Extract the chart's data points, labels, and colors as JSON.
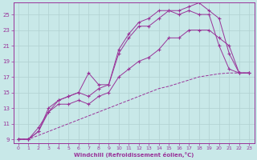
{
  "xlabel": "Windchill (Refroidissement éolien,°C)",
  "ylabel": "",
  "background_color": "#c8e8e8",
  "line_color": "#993399",
  "grid_color": "#b0d0d0",
  "xlim": [
    -0.5,
    23.5
  ],
  "ylim": [
    8.5,
    26.5
  ],
  "xticks": [
    0,
    1,
    2,
    3,
    4,
    5,
    6,
    7,
    8,
    9,
    10,
    11,
    12,
    13,
    14,
    15,
    16,
    17,
    18,
    19,
    20,
    21,
    22,
    23
  ],
  "yticks": [
    9,
    11,
    13,
    15,
    17,
    19,
    21,
    23,
    25
  ],
  "lines": [
    {
      "x": [
        0,
        1,
        2,
        3,
        4,
        5,
        6,
        7,
        8,
        9,
        10,
        11,
        12,
        13,
        14,
        15,
        16,
        17,
        18,
        19,
        20,
        21,
        22,
        23
      ],
      "y": [
        9,
        9,
        10.5,
        12.5,
        14,
        14.5,
        15,
        17.5,
        16,
        16,
        20.5,
        22.5,
        24,
        24.5,
        25.5,
        25.5,
        25.5,
        26,
        26.5,
        25.5,
        24.5,
        20,
        17.5,
        17.5
      ],
      "marker": "+",
      "linestyle": "-"
    },
    {
      "x": [
        0,
        1,
        2,
        3,
        4,
        5,
        6,
        7,
        8,
        9,
        10,
        11,
        12,
        13,
        14,
        15,
        16,
        17,
        18,
        19,
        20,
        21,
        22,
        23
      ],
      "y": [
        9,
        9,
        10,
        13,
        14,
        14.5,
        15,
        14.5,
        15.5,
        16,
        20,
        22,
        23.5,
        23.5,
        24.5,
        25.5,
        25,
        25.5,
        25,
        25,
        21,
        18,
        17.5,
        17.5
      ],
      "marker": "+",
      "linestyle": "-"
    },
    {
      "x": [
        0,
        1,
        2,
        3,
        4,
        5,
        6,
        7,
        8,
        9,
        10,
        11,
        12,
        13,
        14,
        15,
        16,
        17,
        18,
        19,
        20,
        21,
        22,
        23
      ],
      "y": [
        9,
        9,
        10,
        12.5,
        13.5,
        13.5,
        14,
        13.5,
        14.5,
        15,
        17,
        18,
        19,
        19.5,
        20.5,
        22,
        22,
        23,
        23,
        23,
        22,
        21,
        17.5,
        17.5
      ],
      "marker": "+",
      "linestyle": "-"
    },
    {
      "x": [
        0,
        1,
        2,
        3,
        4,
        5,
        6,
        7,
        8,
        9,
        10,
        11,
        12,
        13,
        14,
        15,
        16,
        17,
        18,
        19,
        20,
        21,
        22,
        23
      ],
      "y": [
        9,
        9,
        9.5,
        10,
        10.5,
        11,
        11.5,
        12,
        12.5,
        13,
        13.5,
        14,
        14.5,
        15,
        15.5,
        15.8,
        16.2,
        16.6,
        17,
        17.2,
        17.4,
        17.5,
        17.5,
        17.5
      ],
      "marker": null,
      "linestyle": "--"
    }
  ]
}
